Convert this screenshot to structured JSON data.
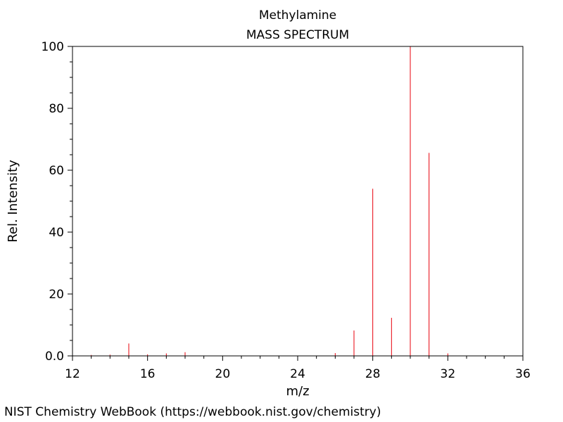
{
  "chart_data": {
    "type": "bar",
    "title": "Methylamine",
    "subtitle": "MASS SPECTRUM",
    "xlabel": "m/z",
    "ylabel": "Rel. Intensity",
    "xlim": [
      12,
      36
    ],
    "ylim": [
      0,
      100
    ],
    "xticks": [
      "12",
      "16",
      "20",
      "24",
      "28",
      "32",
      "36"
    ],
    "yticks": [
      "0.0",
      "20",
      "40",
      "60",
      "80",
      "100"
    ],
    "bar_color": "#e8000b",
    "peaks": [
      {
        "mz": 13,
        "intensity": 0.3
      },
      {
        "mz": 14,
        "intensity": 0.4
      },
      {
        "mz": 15,
        "intensity": 4.0
      },
      {
        "mz": 16,
        "intensity": 0.5
      },
      {
        "mz": 17,
        "intensity": 0.8
      },
      {
        "mz": 18,
        "intensity": 1.2
      },
      {
        "mz": 26,
        "intensity": 0.9
      },
      {
        "mz": 27,
        "intensity": 8.2
      },
      {
        "mz": 28,
        "intensity": 54.0
      },
      {
        "mz": 29,
        "intensity": 12.3
      },
      {
        "mz": 30,
        "intensity": 100
      },
      {
        "mz": 31,
        "intensity": 65.6
      },
      {
        "mz": 32,
        "intensity": 0.8
      }
    ]
  },
  "footer": {
    "credit": "NIST Chemistry WebBook (https://webbook.nist.gov/chemistry)"
  }
}
